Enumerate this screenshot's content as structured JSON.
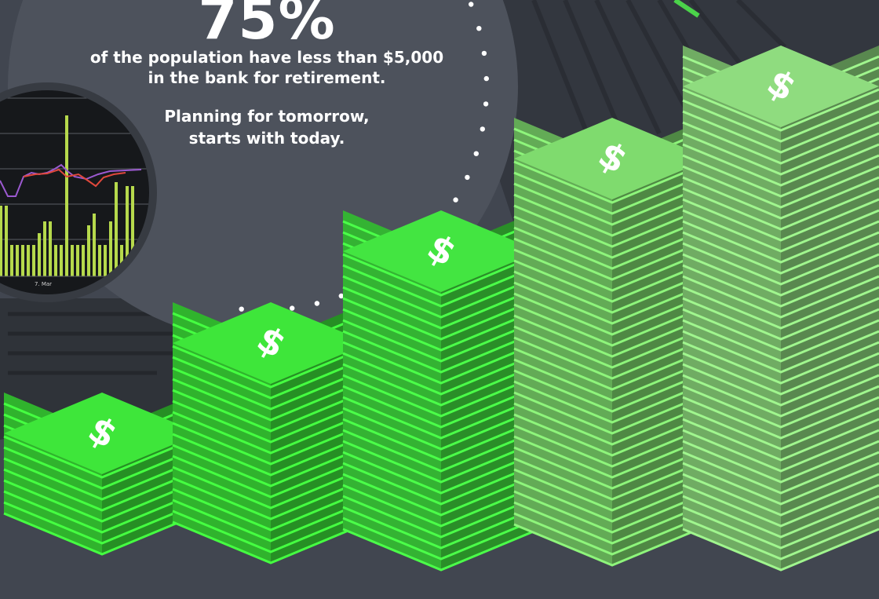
{
  "headline": {
    "percent": "75%",
    "line1": "of the population have less than $5,000",
    "line2": "in the bank for retirement.",
    "tagline1": "Planning for tomorrow,",
    "tagline2": "starts with today."
  },
  "inset_chart": {
    "x_tick": "7. Mar",
    "bar_color": "#b6d94c",
    "line_colors": [
      "#9b59d0",
      "#e0483c"
    ]
  },
  "stacks": {
    "symbol": "$",
    "layers": [
      9,
      14,
      19,
      23,
      27
    ],
    "colors": [
      "#3ee63a",
      "#3ee63a",
      "#43e541",
      "#7fdb6e",
      "#8fdc7f"
    ]
  },
  "colors": {
    "background": "#414650",
    "circle": "#4d525c",
    "dots": "#ffffff",
    "text": "#ffffff"
  }
}
